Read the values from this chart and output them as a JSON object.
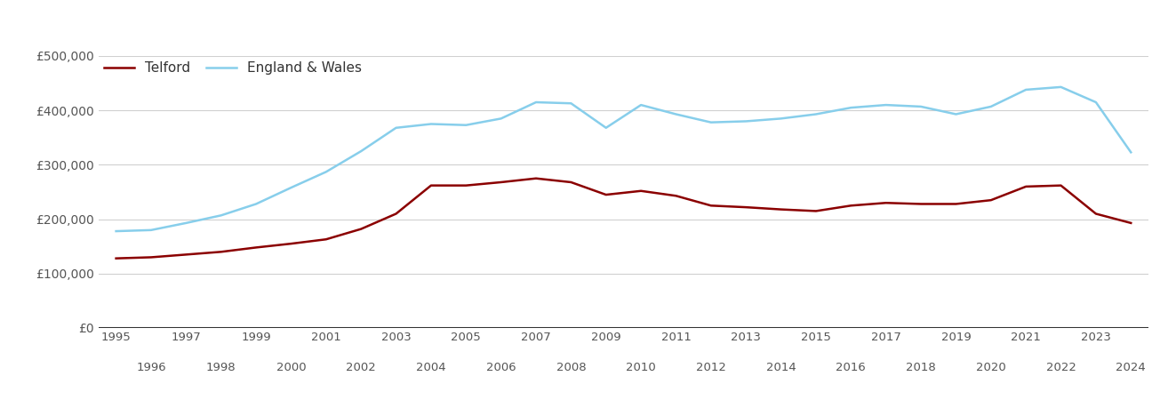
{
  "telford_years": [
    1995,
    1996,
    1997,
    1998,
    1999,
    2000,
    2001,
    2002,
    2003,
    2004,
    2005,
    2006,
    2007,
    2008,
    2009,
    2010,
    2011,
    2012,
    2013,
    2014,
    2015,
    2016,
    2017,
    2018,
    2019,
    2020,
    2021,
    2022,
    2023,
    2024
  ],
  "telford_values": [
    128000,
    130000,
    135000,
    140000,
    148000,
    155000,
    163000,
    182000,
    210000,
    262000,
    262000,
    268000,
    275000,
    268000,
    245000,
    252000,
    243000,
    225000,
    222000,
    218000,
    215000,
    225000,
    230000,
    228000,
    228000,
    235000,
    260000,
    262000,
    210000,
    193000
  ],
  "england_wales_years": [
    1995,
    1996,
    1997,
    1998,
    1999,
    2000,
    2001,
    2002,
    2003,
    2004,
    2005,
    2006,
    2007,
    2008,
    2009,
    2010,
    2011,
    2012,
    2013,
    2014,
    2015,
    2016,
    2017,
    2018,
    2019,
    2020,
    2021,
    2022,
    2023,
    2024
  ],
  "england_wales_values": [
    178000,
    180000,
    193000,
    207000,
    228000,
    258000,
    287000,
    325000,
    368000,
    375000,
    373000,
    385000,
    415000,
    413000,
    368000,
    410000,
    393000,
    378000,
    380000,
    385000,
    393000,
    405000,
    410000,
    407000,
    393000,
    407000,
    438000,
    443000,
    415000,
    323000
  ],
  "telford_color": "#8B0000",
  "england_wales_color": "#87CEEB",
  "background_color": "#ffffff",
  "grid_color": "#d0d0d0",
  "ylim": [
    0,
    500000
  ],
  "yticks": [
    0,
    100000,
    200000,
    300000,
    400000,
    500000
  ],
  "ytick_labels": [
    "£0",
    "£100,000",
    "£200,000",
    "£300,000",
    "£400,000",
    "£500,000"
  ],
  "legend_telford": "Telford",
  "legend_england_wales": "England & Wales",
  "line_width": 1.8,
  "odd_years": [
    1995,
    1997,
    1999,
    2001,
    2003,
    2005,
    2007,
    2009,
    2011,
    2013,
    2015,
    2017,
    2019,
    2021,
    2023
  ],
  "even_years": [
    1996,
    1998,
    2000,
    2002,
    2004,
    2006,
    2008,
    2010,
    2012,
    2014,
    2016,
    2018,
    2020,
    2022,
    2024
  ]
}
